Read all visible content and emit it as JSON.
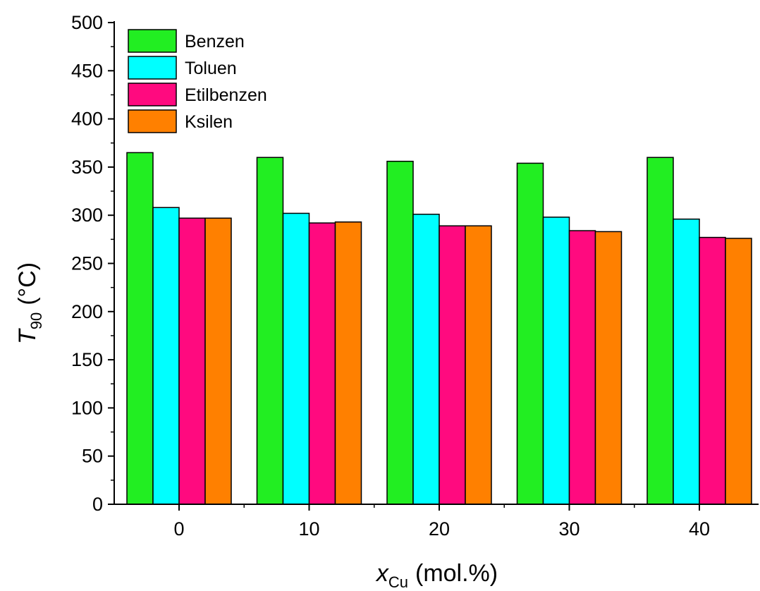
{
  "chart_data": {
    "type": "bar",
    "categories": [
      "0",
      "10",
      "20",
      "30",
      "40"
    ],
    "series": [
      {
        "name": "Benzen",
        "color": "#22ee22",
        "values": [
          365,
          360,
          356,
          354,
          360
        ]
      },
      {
        "name": "Toluen",
        "color": "#00ffff",
        "values": [
          308,
          302,
          301,
          298,
          296
        ]
      },
      {
        "name": "Etilbenzen",
        "color": "#ff0a7f",
        "values": [
          297,
          292,
          289,
          284,
          277
        ]
      },
      {
        "name": "Ksilen",
        "color": "#ff8000",
        "values": [
          297,
          293,
          289,
          283,
          276
        ]
      }
    ],
    "ylim": [
      0,
      500
    ],
    "yticks": [
      "0",
      "50",
      "100",
      "150",
      "200",
      "250",
      "300",
      "350",
      "400",
      "450",
      "500"
    ],
    "xticks": [
      "0",
      "10",
      "20",
      "30",
      "40"
    ],
    "ylabel": {
      "symbol": "T",
      "subscript": "90",
      "unit": "(°C)"
    },
    "xlabel": {
      "symbol": "x",
      "subscript": "Cu",
      "unit": "(mol.%)"
    },
    "legend_position": "top-left",
    "grid": false
  }
}
